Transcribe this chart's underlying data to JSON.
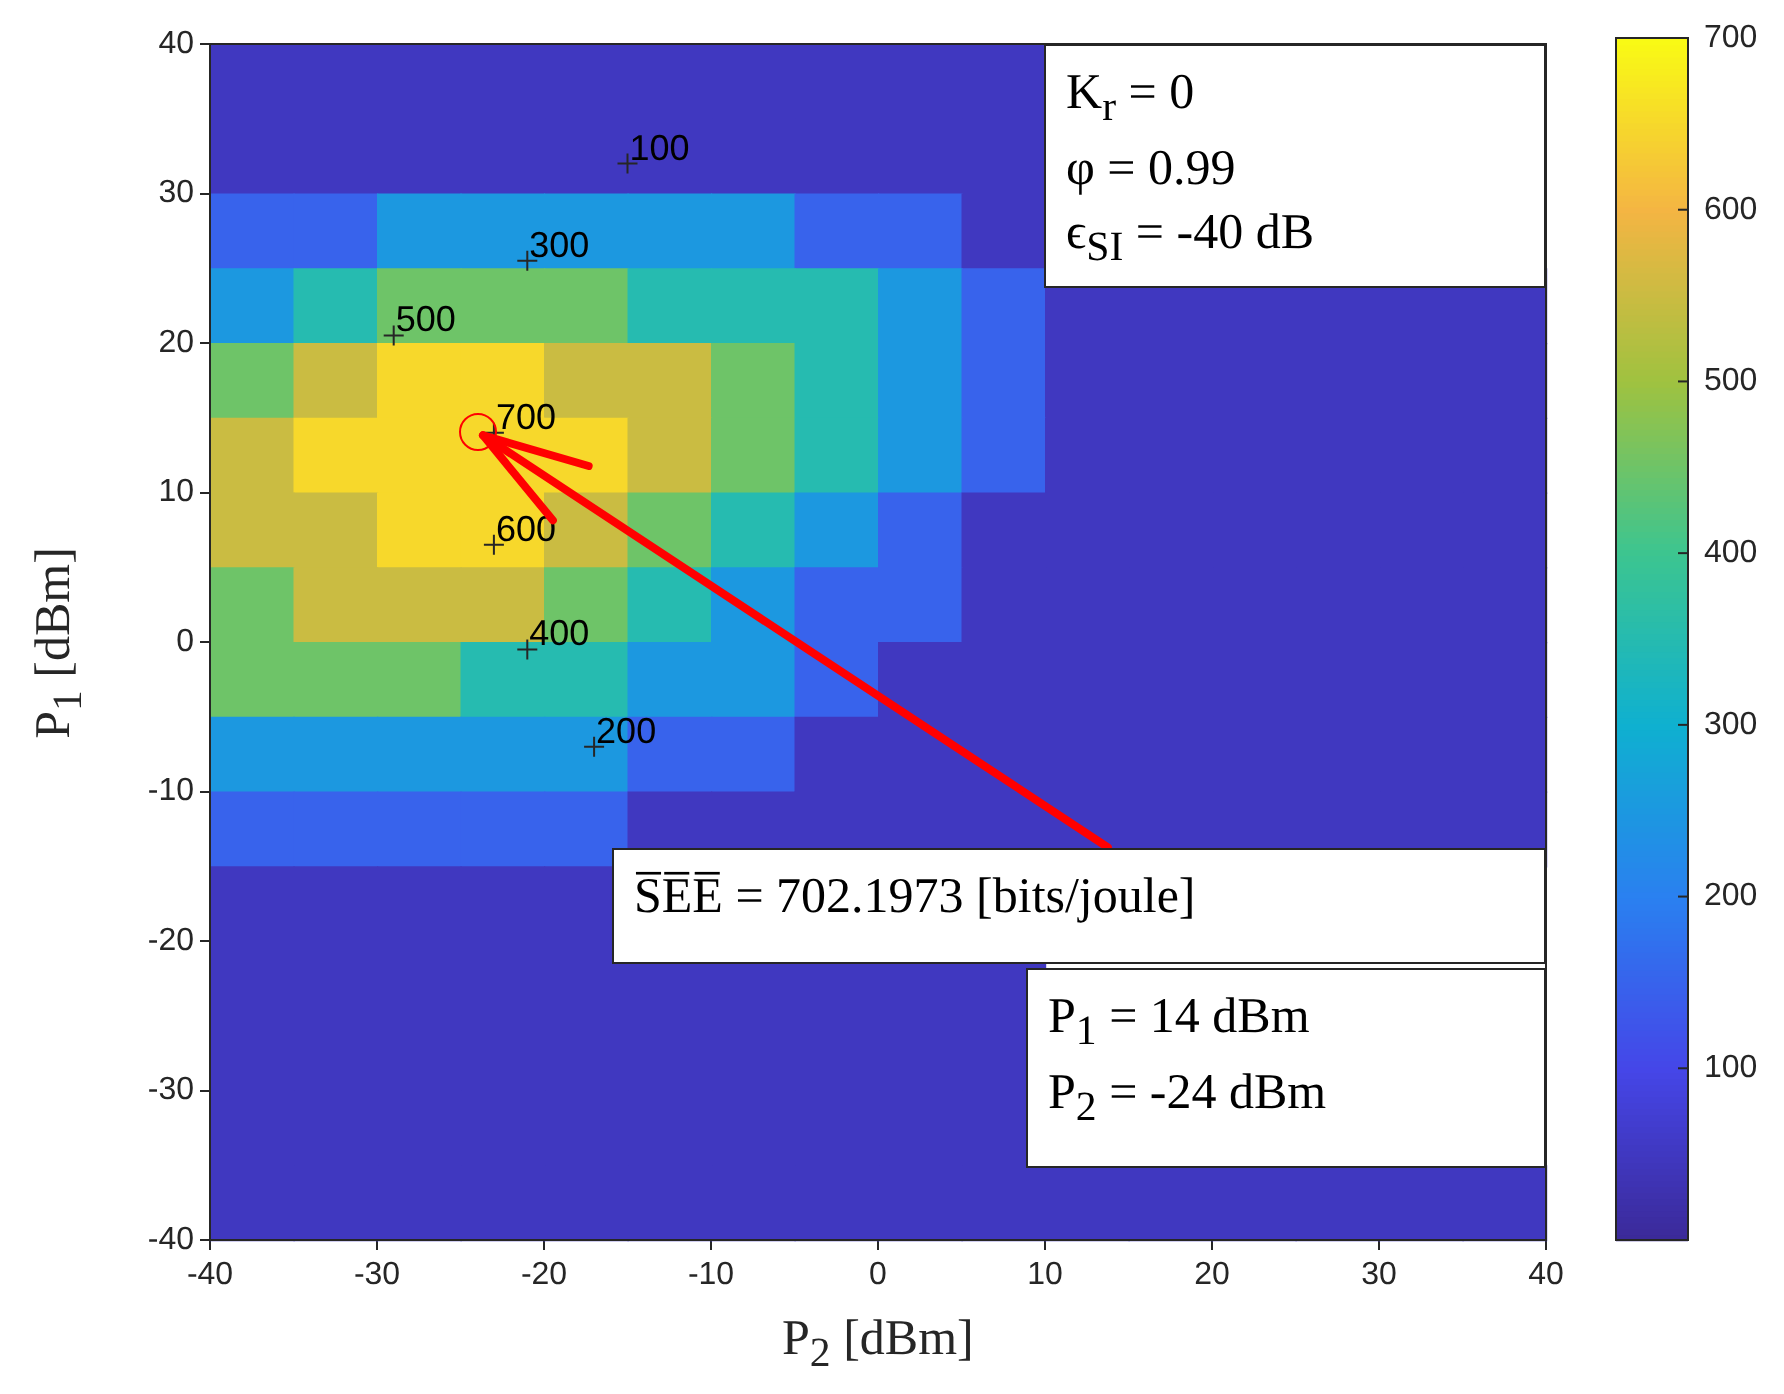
{
  "chart_data": {
    "type": "heatmap",
    "xlabel": "P$_{2}$ [dBm]",
    "ylabel": "P$_{1}$ [dBm]",
    "x": [
      -37.5,
      -32.5,
      -27.5,
      -22.5,
      -17.5,
      -12.5,
      -7.5,
      -2.5,
      2.5,
      7.5,
      12.5,
      17.5,
      22.5,
      27.5,
      32.5,
      37.5
    ],
    "y": [
      37.5,
      32.5,
      27.5,
      22.5,
      17.5,
      12.5,
      7.5,
      2.5,
      -2.5,
      -7.5,
      -12.5,
      -17.5,
      -22.5,
      -27.5,
      -32.5,
      -37.5
    ],
    "xlim": [
      -40,
      40
    ],
    "xticks": [
      -40,
      -30,
      -20,
      -10,
      0,
      10,
      20,
      30,
      40
    ],
    "ylim": [
      -40,
      40
    ],
    "yticks": [
      -40,
      -30,
      -20,
      -10,
      0,
      10,
      20,
      30,
      40
    ],
    "clim": [
      0,
      700
    ],
    "cticks": [
      100,
      200,
      300,
      400,
      500,
      600,
      700
    ],
    "cells": [
      [
        50,
        50,
        50,
        50,
        50,
        50,
        50,
        50,
        50,
        50,
        null,
        null,
        null,
        null,
        null,
        null
      ],
      [
        50,
        50,
        50,
        50,
        50,
        50,
        50,
        50,
        50,
        50,
        null,
        null,
        null,
        null,
        null,
        null
      ],
      [
        150,
        150,
        250,
        250,
        250,
        250,
        250,
        150,
        150,
        50,
        null,
        null,
        null,
        null,
        null,
        null
      ],
      [
        250,
        350,
        450,
        450,
        450,
        350,
        350,
        350,
        250,
        150,
        50,
        50,
        50,
        50,
        50,
        50
      ],
      [
        450,
        550,
        650,
        650,
        550,
        550,
        450,
        350,
        250,
        150,
        50,
        50,
        50,
        50,
        50,
        50
      ],
      [
        550,
        650,
        650,
        650,
        650,
        550,
        450,
        350,
        250,
        150,
        50,
        50,
        50,
        50,
        50,
        50
      ],
      [
        550,
        550,
        650,
        650,
        550,
        450,
        350,
        250,
        150,
        50,
        50,
        50,
        50,
        50,
        50,
        50
      ],
      [
        450,
        550,
        550,
        550,
        450,
        350,
        250,
        150,
        150,
        50,
        50,
        50,
        50,
        50,
        50,
        50
      ],
      [
        450,
        450,
        450,
        350,
        350,
        250,
        250,
        150,
        50,
        50,
        50,
        50,
        50,
        50,
        50,
        50
      ],
      [
        250,
        250,
        250,
        250,
        250,
        150,
        150,
        50,
        50,
        50,
        50,
        50,
        50,
        50,
        50,
        50
      ],
      [
        150,
        150,
        150,
        150,
        150,
        50,
        50,
        50,
        50,
        50,
        50,
        50,
        50,
        50,
        50,
        50
      ],
      [
        50,
        50,
        50,
        50,
        50,
        null,
        null,
        null,
        null,
        null,
        null,
        null,
        null,
        null,
        null,
        null
      ],
      [
        50,
        50,
        50,
        50,
        50,
        50,
        50,
        50,
        50,
        50,
        null,
        null,
        null,
        null,
        null,
        null
      ],
      [
        50,
        50,
        50,
        50,
        50,
        50,
        50,
        50,
        50,
        50,
        null,
        null,
        null,
        null,
        null,
        null
      ],
      [
        50,
        50,
        50,
        50,
        50,
        50,
        50,
        50,
        50,
        50,
        null,
        null,
        null,
        null,
        null,
        null
      ],
      [
        50,
        50,
        50,
        50,
        50,
        50,
        50,
        50,
        50,
        50,
        50,
        50,
        50,
        50,
        50,
        50
      ]
    ],
    "annotations": [
      "100",
      "300",
      "500",
      "700",
      "600",
      "400",
      "200",
      "K$_{r}$ = 0\nφ = 0.99\nϵ$_{SI}$ = -40 dB",
      {
        "text": "S̅E̅E̅ = 702.1973 [bits/joule]",
        "x": -24,
        "y": 14
      },
      "P$_{1}$ = 14 dBm\nP$_{2}$ = -24 dBm"
    ]
  }
}
